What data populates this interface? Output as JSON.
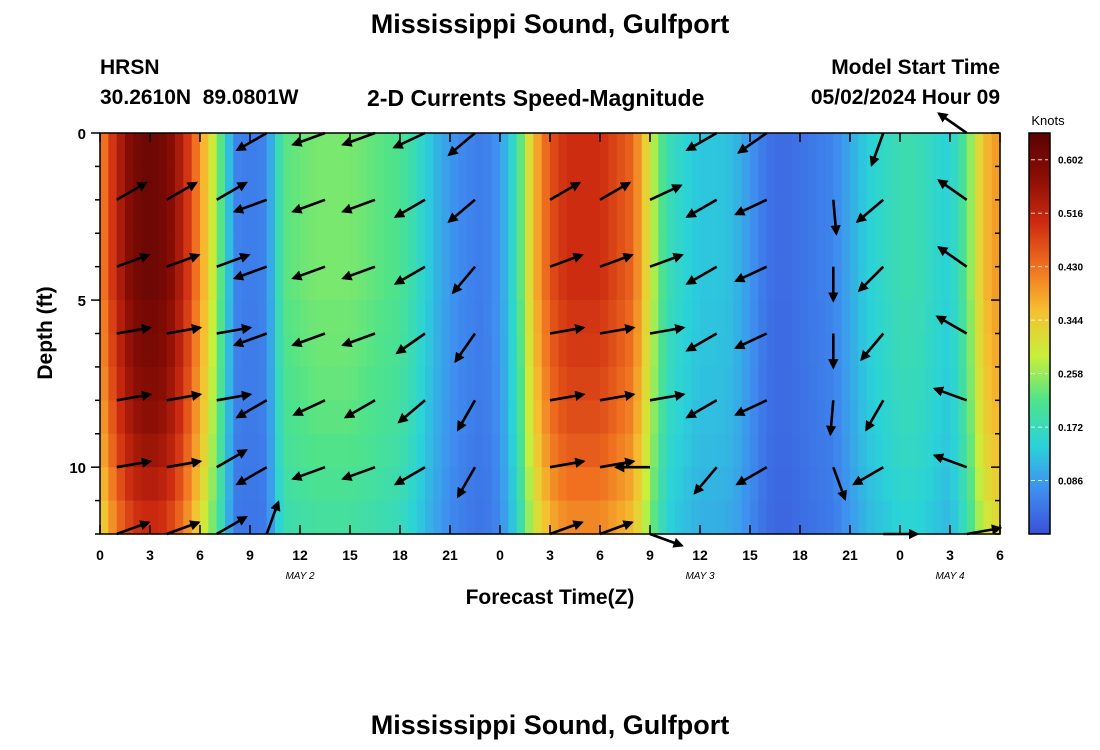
{
  "title": "Mississippi Sound, Gulfport",
  "bottom_title": "Mississippi Sound, Gulfport",
  "station": {
    "id": "HRSN",
    "coordinates": "30.2610N  89.0801W"
  },
  "plot_subtitle": "2-D Currents Speed-Magnitude",
  "model_start": {
    "label": "Model Start Time",
    "value": "05/02/2024 Hour 09"
  },
  "chart_data": {
    "type": "heatmap",
    "xlabel": "Forecast Time(Z)",
    "ylabel": "Depth (ft)",
    "x_tick_labels": [
      "0",
      "3",
      "6",
      "9",
      "12",
      "15",
      "18",
      "21",
      "0",
      "3",
      "6",
      "9",
      "12",
      "15",
      "18",
      "21",
      "0",
      "3",
      "6"
    ],
    "x_range_hours": [
      0,
      54
    ],
    "y_ticks": [
      0,
      5,
      10
    ],
    "ylim": [
      12,
      0
    ],
    "date_labels": [
      {
        "text": "MAY 2",
        "hour": 12
      },
      {
        "text": "MAY 3",
        "hour": 36
      },
      {
        "text": "MAY 4",
        "hour": 51
      }
    ],
    "colorbar": {
      "label": "Knots",
      "ticks": [
        "0.602",
        "0.516",
        "0.430",
        "0.344",
        "0.258",
        "0.172",
        "0.086"
      ],
      "range": [
        0.0,
        0.645
      ],
      "colors": [
        "#3a50d8",
        "#3f8ff0",
        "#2ad3d8",
        "#4fe38a",
        "#c8f03a",
        "#f5c030",
        "#f07020",
        "#cc2a10",
        "#8a0e05",
        "#5a0303"
      ]
    },
    "speed_profile": {
      "hour": [
        0,
        1,
        2,
        3,
        4,
        5,
        6,
        7,
        7.5,
        8,
        9,
        10,
        11,
        13,
        15,
        17,
        18,
        19,
        20,
        21,
        22,
        23,
        24,
        25,
        26,
        27,
        28,
        30,
        32,
        33,
        34,
        35,
        36,
        37,
        38,
        39,
        40,
        41,
        42,
        44,
        46,
        48,
        49,
        50,
        51,
        52,
        53,
        54
      ],
      "speed": [
        0.4,
        0.52,
        0.6,
        0.62,
        0.6,
        0.52,
        0.4,
        0.26,
        0.18,
        0.06,
        0.05,
        0.06,
        0.22,
        0.24,
        0.24,
        0.22,
        0.21,
        0.17,
        0.12,
        0.08,
        0.06,
        0.05,
        0.08,
        0.18,
        0.36,
        0.46,
        0.5,
        0.5,
        0.44,
        0.3,
        0.18,
        0.15,
        0.13,
        0.13,
        0.12,
        0.08,
        0.04,
        0.03,
        0.04,
        0.06,
        0.14,
        0.18,
        0.18,
        0.16,
        0.14,
        0.22,
        0.36,
        0.4
      ]
    },
    "depth_speed_factor": [
      1.0,
      1.0,
      1.0,
      1.0,
      1.0,
      0.98,
      0.97,
      0.95,
      0.93,
      0.9,
      0.86,
      0.82
    ],
    "vectors": {
      "depths": [
        0,
        2,
        4,
        6,
        8,
        10,
        12
      ],
      "hours": [
        1,
        4,
        7,
        10,
        13.5,
        16.5,
        19.5,
        22.5,
        27,
        30,
        33,
        37,
        40,
        44,
        47,
        52
      ],
      "direction_deg": [
        [
          null,
          null,
          null,
          240,
          250,
          250,
          245,
          230,
          null,
          null,
          null,
          240,
          235,
          null,
          200,
          305
        ],
        [
          60,
          60,
          60,
          250,
          250,
          250,
          240,
          230,
          60,
          60,
          65,
          240,
          245,
          175,
          230,
          305
        ],
        [
          70,
          70,
          70,
          250,
          250,
          250,
          240,
          220,
          70,
          70,
          70,
          240,
          245,
          180,
          225,
          305
        ],
        [
          80,
          80,
          80,
          250,
          250,
          250,
          235,
          215,
          80,
          80,
          80,
          240,
          245,
          180,
          220,
          300
        ],
        [
          80,
          80,
          80,
          240,
          245,
          240,
          230,
          210,
          80,
          80,
          80,
          240,
          245,
          185,
          210,
          290
        ],
        [
          80,
          80,
          60,
          240,
          250,
          250,
          240,
          210,
          80,
          80,
          270,
          220,
          240,
          160,
          240,
          290
        ],
        [
          70,
          70,
          60,
          20,
          null,
          null,
          null,
          null,
          70,
          70,
          110,
          null,
          null,
          null,
          90,
          80
        ]
      ]
    }
  }
}
